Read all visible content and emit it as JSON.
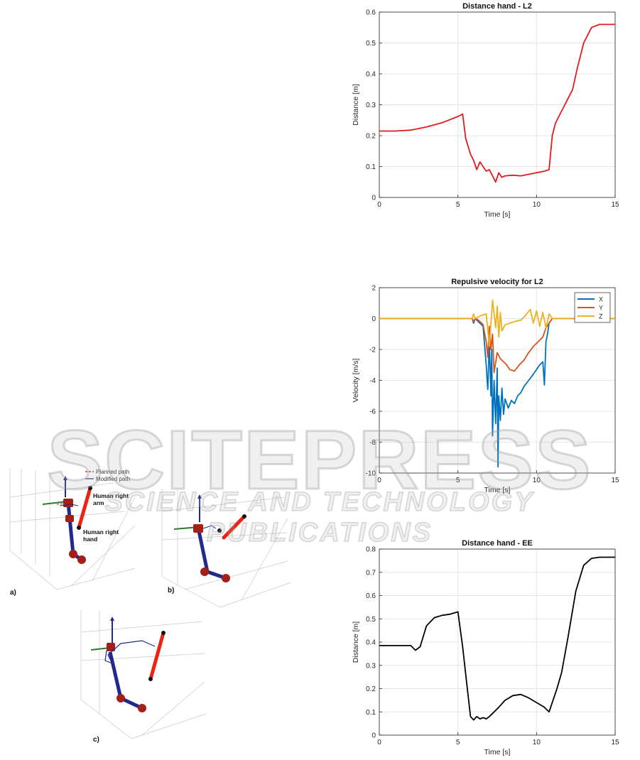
{
  "colors": {
    "red_trace": "#e31a1c",
    "black_trace": "#000000",
    "series_x": "#0072bd",
    "series_y": "#d95319",
    "series_z": "#edb120",
    "grid": "#e6e6e6",
    "robot_link": "#1f2a8c",
    "robot_joint": "#a32018",
    "human_arm": "#ee2211"
  },
  "robot_figure": {
    "panels": [
      {
        "label": "a)",
        "legend": [
          "Planned path",
          "Modified path"
        ],
        "annotations": [
          "Human right arm",
          "Human right hand"
        ]
      },
      {
        "label": "b)"
      },
      {
        "label": "c)"
      }
    ]
  },
  "watermark": {
    "big": "SCITEPRESS",
    "small": "SCIENCE AND TECHNOLOGY PUBLICATIONS"
  },
  "chart_data": [
    {
      "type": "line",
      "title": "Distance hand - L2",
      "xlabel": "Time [s]",
      "ylabel": "Distance [m]",
      "xlim": [
        0,
        15
      ],
      "ylim": [
        0,
        0.6
      ],
      "xticks": [
        0,
        5,
        10,
        15
      ],
      "yticks": [
        0,
        0.1,
        0.2,
        0.3,
        0.4,
        0.5,
        0.6
      ],
      "ytick_labels": [
        "0",
        "0.1",
        "0.2",
        "0.3",
        "0.4",
        "0.5",
        "0.6"
      ],
      "grid": true,
      "series": [
        {
          "color": "#e31a1c",
          "x": [
            0,
            1,
            2,
            3,
            4,
            5,
            5.3,
            5.5,
            5.8,
            6,
            6.2,
            6.4,
            6.6,
            6.8,
            7,
            7.2,
            7.4,
            7.6,
            7.8,
            8,
            8.5,
            9,
            9.5,
            10,
            10.5,
            10.8,
            11,
            11.2,
            11.5,
            11.8,
            12,
            12.3,
            12.6,
            13,
            13.5,
            14,
            15
          ],
          "y": [
            0.215,
            0.215,
            0.218,
            0.228,
            0.242,
            0.262,
            0.27,
            0.19,
            0.14,
            0.12,
            0.09,
            0.115,
            0.1,
            0.085,
            0.09,
            0.07,
            0.05,
            0.08,
            0.065,
            0.07,
            0.072,
            0.07,
            0.075,
            0.08,
            0.085,
            0.09,
            0.2,
            0.24,
            0.27,
            0.3,
            0.32,
            0.35,
            0.42,
            0.5,
            0.55,
            0.56,
            0.56
          ]
        }
      ]
    },
    {
      "type": "line",
      "title": "Repulsive velocity for L2",
      "xlabel": "Time [s]",
      "ylabel": "Velocity [m/s]",
      "xlim": [
        0,
        15
      ],
      "ylim": [
        -10,
        2
      ],
      "xticks": [
        0,
        5,
        10,
        15
      ],
      "yticks": [
        -10,
        -8,
        -6,
        -4,
        -2,
        0,
        2
      ],
      "ytick_labels": [
        "-10",
        "-8",
        "-6",
        "-4",
        "-2",
        "0",
        "2"
      ],
      "grid": true,
      "legend": "top-right",
      "series": [
        {
          "name": "X",
          "color": "#0072bd",
          "x": [
            0,
            5.9,
            6.0,
            6.1,
            6.3,
            6.6,
            6.8,
            6.9,
            7.0,
            7.1,
            7.15,
            7.2,
            7.3,
            7.4,
            7.5,
            7.55,
            7.6,
            7.7,
            7.8,
            7.9,
            8.0,
            8.2,
            8.4,
            8.6,
            8.8,
            9.0,
            9.2,
            9.5,
            9.8,
            10.0,
            10.2,
            10.4,
            10.5,
            10.6,
            10.7,
            10.8,
            11,
            15
          ],
          "y": [
            0,
            0,
            -0.3,
            0,
            -0.2,
            -0.5,
            -3.0,
            -4.6,
            -1.5,
            -5.0,
            -2.0,
            -7.6,
            -4.0,
            -6.8,
            -3.2,
            -9.6,
            -5.0,
            -6.6,
            -4.5,
            -6.2,
            -5.2,
            -5.8,
            -5.3,
            -5.5,
            -5.0,
            -4.8,
            -4.4,
            -4.0,
            -3.6,
            -3.3,
            -3.0,
            -2.8,
            -4.3,
            -1.5,
            -1.0,
            -0.3,
            0,
            0
          ]
        },
        {
          "name": "Y",
          "color": "#d95319",
          "x": [
            0,
            5.9,
            6.0,
            6.1,
            6.3,
            6.6,
            6.8,
            6.9,
            7.0,
            7.1,
            7.2,
            7.3,
            7.5,
            7.7,
            7.9,
            8.1,
            8.3,
            8.6,
            8.9,
            9.2,
            9.5,
            9.8,
            10.1,
            10.4,
            10.6,
            10.8,
            11,
            15
          ],
          "y": [
            0,
            0,
            -0.2,
            0,
            -0.1,
            -0.4,
            -1.5,
            -2.5,
            -0.5,
            -2.0,
            -1.0,
            -3.5,
            -2.2,
            -2.6,
            -2.8,
            -3.0,
            -3.3,
            -3.4,
            -3.0,
            -2.7,
            -2.2,
            -1.8,
            -1.5,
            -1.2,
            -0.6,
            -0.3,
            0,
            0
          ]
        },
        {
          "name": "Z",
          "color": "#edb120",
          "x": [
            0,
            5.9,
            6.0,
            6.1,
            6.5,
            6.8,
            7.0,
            7.2,
            7.4,
            7.5,
            7.6,
            7.7,
            7.8,
            8.0,
            8.3,
            8.6,
            9.0,
            9.3,
            9.6,
            9.8,
            10.0,
            10.2,
            10.4,
            10.6,
            10.8,
            11,
            15
          ],
          "y": [
            0,
            0,
            0.3,
            0,
            0.2,
            0.3,
            -1.8,
            1.2,
            -0.6,
            0.8,
            -1.2,
            0.4,
            -0.8,
            -0.4,
            -0.3,
            -0.2,
            -0.1,
            0.2,
            0.6,
            -0.3,
            0.5,
            -0.5,
            0.4,
            -0.6,
            0.3,
            0,
            0
          ]
        }
      ]
    },
    {
      "type": "line",
      "title": "Distance hand - EE",
      "xlabel": "Time [s]",
      "ylabel": "Distance [m]",
      "xlim": [
        0,
        15
      ],
      "ylim": [
        0,
        0.8
      ],
      "xticks": [
        0,
        5,
        10,
        15
      ],
      "yticks": [
        0,
        0.1,
        0.2,
        0.3,
        0.4,
        0.5,
        0.6,
        0.7,
        0.8
      ],
      "ytick_labels": [
        "0",
        "0.1",
        "0.2",
        "0.3",
        "0.4",
        "0.5",
        "0.6",
        "0.7",
        "0.8"
      ],
      "grid": true,
      "series": [
        {
          "color": "#000000",
          "x": [
            0,
            1,
            2,
            2.3,
            2.6,
            3,
            3.5,
            4,
            4.5,
            5,
            5.3,
            5.6,
            5.8,
            6,
            6.2,
            6.4,
            6.6,
            6.8,
            7,
            7.3,
            7.6,
            8,
            8.5,
            9,
            9.5,
            10,
            10.5,
            10.8,
            11,
            11.3,
            11.6,
            12,
            12.5,
            13,
            13.5,
            14,
            15
          ],
          "y": [
            0.385,
            0.385,
            0.385,
            0.365,
            0.38,
            0.47,
            0.505,
            0.515,
            0.52,
            0.53,
            0.38,
            0.2,
            0.08,
            0.065,
            0.08,
            0.07,
            0.075,
            0.07,
            0.08,
            0.1,
            0.12,
            0.15,
            0.17,
            0.175,
            0.16,
            0.14,
            0.12,
            0.1,
            0.14,
            0.2,
            0.27,
            0.42,
            0.62,
            0.73,
            0.76,
            0.765,
            0.765
          ]
        }
      ]
    }
  ]
}
